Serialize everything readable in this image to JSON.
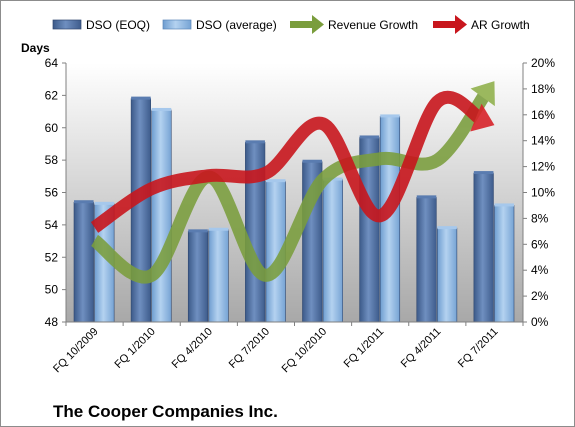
{
  "chart_data": {
    "type": "bar",
    "title": "The Cooper Companies Inc.",
    "ylabel": "Days",
    "y2label": "",
    "ylim": [
      48,
      64
    ],
    "y_ticks": [
      48,
      50,
      52,
      54,
      56,
      58,
      60,
      62,
      64
    ],
    "y2lim": [
      0,
      20
    ],
    "y2_ticks": [
      "0%",
      "2%",
      "4%",
      "6%",
      "8%",
      "10%",
      "12%",
      "14%",
      "16%",
      "18%",
      "20%"
    ],
    "categories": [
      "FQ 10/2009",
      "FQ 1/2010",
      "FQ 4/2010",
      "FQ 7/2010",
      "FQ 10/2010",
      "FQ 1/2011",
      "FQ 4/2011",
      "FQ 7/2011"
    ],
    "series": [
      {
        "name": "DSO (EOQ)",
        "type": "bar",
        "axis": "left",
        "color": "#4f6fa0",
        "values": [
          55.4,
          61.8,
          53.6,
          59.1,
          57.9,
          59.4,
          55.7,
          57.2
        ]
      },
      {
        "name": "DSO (average)",
        "type": "bar",
        "axis": "left",
        "color": "#8bb4e0",
        "values": [
          55.3,
          61.1,
          53.7,
          56.7,
          56.8,
          60.7,
          53.8,
          55.2
        ]
      },
      {
        "name": "Revenue Growth",
        "type": "line-arrow",
        "axis": "right",
        "color": "#7a9a3a",
        "values": [
          6.3,
          3.6,
          11.2,
          3.6,
          11.0,
          12.6,
          12.5,
          18.6
        ]
      },
      {
        "name": "AR Growth",
        "type": "line-arrow",
        "axis": "right",
        "color": "#c00000",
        "values": [
          7.3,
          10.3,
          11.3,
          11.5,
          15.3,
          8.2,
          17.0,
          15.2
        ]
      }
    ],
    "legend_position": "top",
    "grid": false
  }
}
